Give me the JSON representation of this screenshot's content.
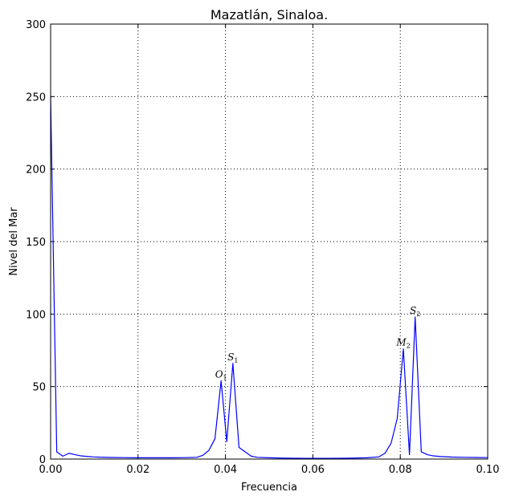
{
  "chart_data": {
    "type": "line",
    "title": "Mazatlán, Sinaloa.",
    "xlabel": "Frecuencia",
    "ylabel": "Nivel del Mar",
    "xlim": [
      0.0,
      0.1
    ],
    "ylim": [
      0,
      300
    ],
    "grid": true,
    "line_color": "#0000ff",
    "x_ticks": [
      0.0,
      0.02,
      0.04,
      0.06,
      0.08,
      0.1
    ],
    "x_tick_labels": [
      "0.00",
      "0.02",
      "0.04",
      "0.06",
      "0.08",
      "0.10"
    ],
    "y_ticks": [
      0,
      50,
      100,
      150,
      200,
      250,
      300
    ],
    "y_tick_labels": [
      "0",
      "50",
      "100",
      "150",
      "200",
      "250",
      "300"
    ],
    "series": [
      {
        "x": [
          0.0,
          0.0014,
          0.0028,
          0.0042,
          0.0056,
          0.007,
          0.0084,
          0.0098,
          0.0112,
          0.0139,
          0.0167,
          0.0195,
          0.0223,
          0.025,
          0.0278,
          0.0306,
          0.0334,
          0.0348,
          0.0362,
          0.0376,
          0.039,
          0.0403,
          0.0417,
          0.0431,
          0.0445,
          0.0459,
          0.0473,
          0.05,
          0.0528,
          0.0556,
          0.0584,
          0.0612,
          0.064,
          0.0668,
          0.0695,
          0.0723,
          0.0751,
          0.0765,
          0.0779,
          0.0793,
          0.0807,
          0.0821,
          0.0834,
          0.0848,
          0.0862,
          0.0876,
          0.089,
          0.0918,
          0.0946,
          0.0973,
          0.1
        ],
        "y": [
          250,
          5,
          2,
          4,
          3,
          2.2,
          1.8,
          1.5,
          1.3,
          1.1,
          1.0,
          0.9,
          0.9,
          0.9,
          0.9,
          1.0,
          1.2,
          2.5,
          6,
          14,
          54,
          12,
          66,
          8,
          5,
          2,
          1.2,
          0.9,
          0.7,
          0.6,
          0.5,
          0.5,
          0.5,
          0.6,
          0.7,
          0.9,
          1.5,
          4,
          11,
          28,
          76,
          3,
          98,
          5,
          3,
          2.2,
          1.8,
          1.4,
          1.2,
          1.1,
          1.0
        ]
      }
    ],
    "annotations": [
      {
        "base": "O",
        "sub": "1",
        "x": 0.039,
        "y": 54
      },
      {
        "base": "S",
        "sub": "1",
        "x": 0.0417,
        "y": 66
      },
      {
        "base": "M",
        "sub": "2",
        "x": 0.0807,
        "y": 76
      },
      {
        "base": "S",
        "sub": "2",
        "x": 0.0834,
        "y": 98
      }
    ]
  }
}
